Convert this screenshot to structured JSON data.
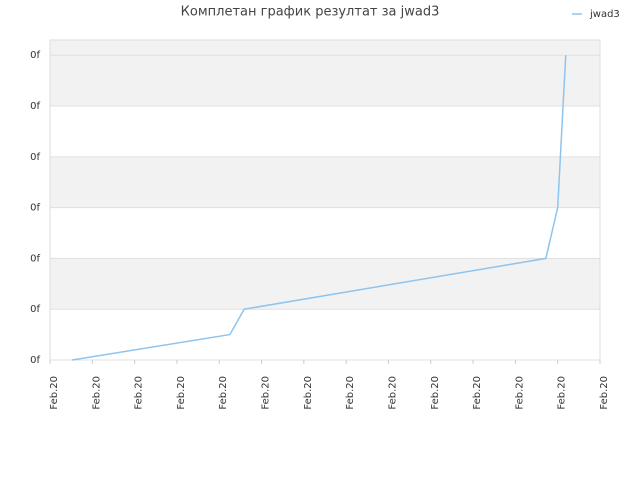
{
  "chart_data": {
    "type": "line",
    "title": "Комплетан график резултат за jwad3",
    "x": [
      0.52,
      4.25,
      4.59,
      11.72,
      12.0,
      12.19
    ],
    "series": [
      {
        "name": "jwad3",
        "color": "#8ec4ee",
        "values": [
          0,
          0.5,
          1,
          2,
          3,
          6
        ]
      }
    ],
    "xlim": [
      0,
      13
    ],
    "xticks": [
      {
        "value": 0,
        "label": "Feb.20"
      },
      {
        "value": 1,
        "label": "Feb.20"
      },
      {
        "value": 2,
        "label": "Feb.20"
      },
      {
        "value": 3,
        "label": "Feb.20"
      },
      {
        "value": 4,
        "label": "Feb.20"
      },
      {
        "value": 5,
        "label": "Feb.20"
      },
      {
        "value": 6,
        "label": "Feb.20"
      },
      {
        "value": 7,
        "label": "Feb.20"
      },
      {
        "value": 8,
        "label": "Feb.20"
      },
      {
        "value": 9,
        "label": "Feb.20"
      },
      {
        "value": 10,
        "label": "Feb.20"
      },
      {
        "value": 11,
        "label": "Feb.20"
      },
      {
        "value": 12,
        "label": "Feb.20"
      },
      {
        "value": 13,
        "label": "Feb.20"
      }
    ],
    "ylim": [
      0,
      6.3
    ],
    "yticks": [
      {
        "value": 0,
        "label": "0f"
      },
      {
        "value": 1,
        "label": "0f"
      },
      {
        "value": 2,
        "label": "0f"
      },
      {
        "value": 3,
        "label": "0f"
      },
      {
        "value": 4,
        "label": "0f"
      },
      {
        "value": 5,
        "label": "0f"
      },
      {
        "value": 6,
        "label": "0f"
      }
    ],
    "grid": true,
    "legend": "top-right"
  }
}
